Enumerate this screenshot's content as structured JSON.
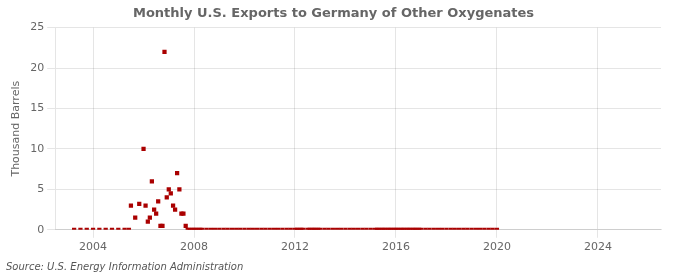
{
  "chart_data": {
    "type": "scatter",
    "title": "Monthly U.S. Exports to Germany of Other Oxygenates",
    "ylabel": "Thousand Barrels",
    "annotations": [
      "Source: U.S. Energy Information Administration"
    ],
    "color": "#aa0000",
    "marker": "square",
    "grid": true,
    "xlim": [
      2002.5,
      2026.5
    ],
    "ylim": [
      0,
      25
    ],
    "xticks": [
      2004,
      2008,
      2012,
      2016,
      2020,
      2024
    ],
    "yticks": [
      0,
      5,
      10,
      15,
      20,
      25
    ],
    "x": [
      2003.25,
      2003.5,
      2003.75,
      2004.0,
      2004.25,
      2004.5,
      2004.75,
      2005.0,
      2005.25,
      2005.42,
      2005.5,
      2005.67,
      2005.83,
      2006.0,
      2006.08,
      2006.17,
      2006.25,
      2006.33,
      2006.42,
      2006.5,
      2006.58,
      2006.67,
      2006.75,
      2006.83,
      2006.92,
      2007.0,
      2007.08,
      2007.17,
      2007.25,
      2007.33,
      2007.42,
      2007.5,
      2007.58,
      2007.67,
      2007.75,
      2007.83,
      2007.92,
      2008.0,
      2008.08,
      2008.17,
      2008.25,
      2008.33,
      2008.5,
      2008.67,
      2008.83,
      2009.0,
      2009.17,
      2009.33,
      2009.5,
      2009.67,
      2009.83,
      2010.0,
      2010.17,
      2010.33,
      2010.5,
      2010.67,
      2010.83,
      2011.0,
      2011.17,
      2011.33,
      2011.5,
      2011.67,
      2011.83,
      2012.0,
      2012.08,
      2012.17,
      2012.25,
      2012.33,
      2012.5,
      2012.58,
      2012.67,
      2012.75,
      2012.83,
      2012.92,
      2013.0,
      2013.17,
      2013.33,
      2013.5,
      2013.67,
      2013.83,
      2014.0,
      2014.17,
      2014.33,
      2014.5,
      2014.67,
      2014.83,
      2015.0,
      2015.17,
      2015.25,
      2015.33,
      2015.42,
      2015.5,
      2015.58,
      2015.67,
      2015.75,
      2015.83,
      2015.92,
      2016.0,
      2016.08,
      2016.17,
      2016.25,
      2016.33,
      2016.42,
      2016.5,
      2016.58,
      2016.67,
      2016.75,
      2016.83,
      2016.92,
      2017.0,
      2017.17,
      2017.33,
      2017.5,
      2017.67,
      2017.83,
      2018.0,
      2018.17,
      2018.33,
      2018.5,
      2018.67,
      2018.83,
      2019.0,
      2019.17,
      2019.33,
      2019.5,
      2019.67,
      2019.83,
      2020.0
    ],
    "values": [
      0.0,
      0.0,
      0.0,
      0.0,
      0.0,
      0.0,
      0.0,
      0.0,
      0.0,
      0.0,
      3.0,
      1.5,
      3.2,
      10.0,
      3.0,
      1.0,
      1.5,
      6.0,
      2.5,
      2.0,
      3.5,
      0.5,
      0.5,
      22.0,
      4.0,
      5.0,
      4.5,
      3.0,
      2.5,
      7.0,
      5.0,
      2.0,
      2.0,
      0.5,
      0.0,
      0.0,
      0.0,
      0.0,
      0.0,
      0.0,
      0.0,
      0.0,
      0.0,
      0.0,
      0.0,
      0.0,
      0.0,
      0.0,
      0.0,
      0.0,
      0.0,
      0.0,
      0.0,
      0.0,
      0.0,
      0.0,
      0.0,
      0.0,
      0.0,
      0.0,
      0.0,
      0.0,
      0.0,
      0.0,
      0.0,
      0.0,
      0.0,
      0.0,
      0.0,
      0.0,
      0.0,
      0.0,
      0.0,
      0.0,
      0.0,
      0.0,
      0.0,
      0.0,
      0.0,
      0.0,
      0.0,
      0.0,
      0.0,
      0.0,
      0.0,
      0.0,
      0.0,
      0.0,
      0.0,
      0.0,
      0.0,
      0.0,
      0.0,
      0.0,
      0.0,
      0.0,
      0.0,
      0.0,
      0.0,
      0.0,
      0.0,
      0.0,
      0.0,
      0.0,
      0.0,
      0.0,
      0.0,
      0.0,
      0.0,
      0.0,
      0.0,
      0.0,
      0.0,
      0.0,
      0.0,
      0.0,
      0.0,
      0.0,
      0.0,
      0.0,
      0.0,
      0.0,
      0.0,
      0.0,
      0.0,
      0.0,
      0.0,
      0.0
    ]
  }
}
